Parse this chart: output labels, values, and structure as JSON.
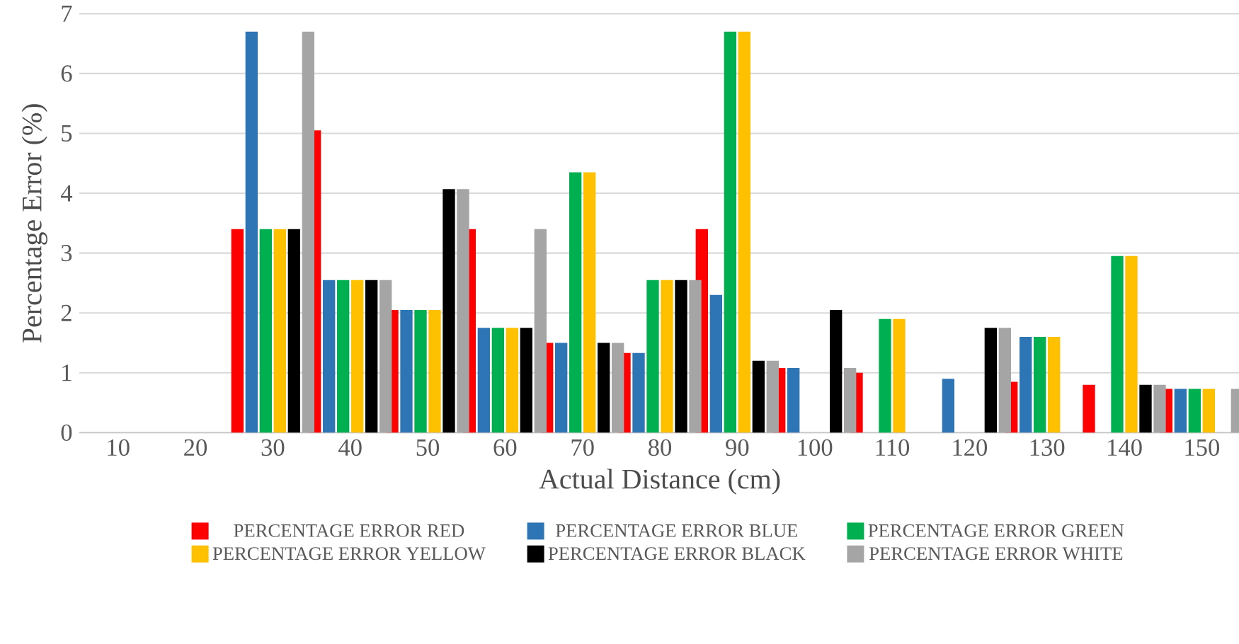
{
  "chart_data": {
    "type": "bar",
    "xlabel": "Actual Distance (cm)",
    "ylabel": "Percentage Error (%)",
    "categories": [
      "10",
      "20",
      "30",
      "40",
      "50",
      "60",
      "70",
      "80",
      "90",
      "100",
      "110",
      "120",
      "130",
      "140",
      "150"
    ],
    "series": [
      {
        "name": "PERCENTAGE ERROR RED",
        "color": "#ff0000",
        "values": [
          null,
          null,
          3.4,
          5.05,
          2.05,
          3.4,
          1.5,
          1.33,
          3.4,
          1.08,
          1.0,
          null,
          0.85,
          0.8,
          0.73
        ]
      },
      {
        "name": "PERCENTAGE ERROR BLUE",
        "color": "#2e75b6",
        "values": [
          null,
          null,
          6.7,
          2.55,
          2.05,
          1.75,
          1.5,
          1.33,
          2.3,
          1.08,
          null,
          0.9,
          1.6,
          null,
          0.73
        ]
      },
      {
        "name": "PERCENTAGE ERROR GREEN",
        "color": "#00b050",
        "values": [
          null,
          null,
          3.4,
          2.55,
          2.05,
          1.75,
          4.35,
          2.55,
          6.7,
          null,
          1.9,
          null,
          1.6,
          2.95,
          0.73
        ]
      },
      {
        "name": "PERCENTAGE ERROR YELLOW",
        "color": "#ffc000",
        "values": [
          null,
          null,
          3.4,
          2.55,
          2.05,
          1.75,
          4.35,
          2.55,
          6.7,
          null,
          1.9,
          null,
          1.6,
          2.95,
          0.73
        ]
      },
      {
        "name": "PERCENTAGE ERROR BLACK",
        "color": "#000000",
        "values": [
          null,
          null,
          3.4,
          2.55,
          4.07,
          1.75,
          1.5,
          2.55,
          1.2,
          2.05,
          null,
          1.75,
          null,
          0.8,
          null
        ]
      },
      {
        "name": "PERCENTAGE ERROR WHITE",
        "color": "#a5a5a5",
        "values": [
          null,
          null,
          6.7,
          2.55,
          4.07,
          3.4,
          1.5,
          2.55,
          1.2,
          1.08,
          null,
          1.75,
          null,
          0.8,
          0.73
        ]
      }
    ],
    "ylim": [
      0,
      7
    ],
    "yticks": [
      0,
      1,
      2,
      3,
      4,
      5,
      6,
      7
    ],
    "grid": "y",
    "legend": "bottom"
  }
}
